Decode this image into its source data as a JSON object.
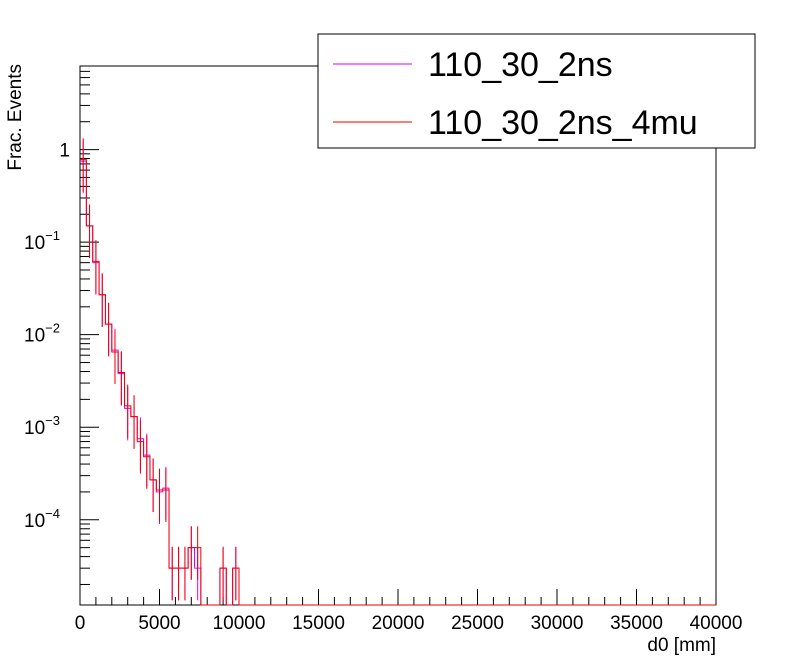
{
  "chart_data": {
    "type": "line",
    "subtype": "step-histogram",
    "title": "",
    "xlabel": "d0 [mm]",
    "ylabel": "Frac. Events",
    "xlim": [
      0,
      40000
    ],
    "ylim": [
      1.2e-05,
      8
    ],
    "yscale": "log",
    "grid": false,
    "legend_position": "top-right",
    "x_ticks": [
      0,
      5000,
      10000,
      15000,
      20000,
      25000,
      30000,
      35000,
      40000
    ],
    "y_ticks": [
      {
        "value": 0.0001,
        "mantissa": "10",
        "exp": "−4"
      },
      {
        "value": 0.001,
        "mantissa": "10",
        "exp": "−3"
      },
      {
        "value": 0.01,
        "mantissa": "10",
        "exp": "−2"
      },
      {
        "value": 0.1,
        "mantissa": "10",
        "exp": "−1"
      },
      {
        "value": 1,
        "mantissa": "1",
        "exp": ""
      }
    ],
    "bin_width": 400,
    "series": [
      {
        "name": "110_30_2ns",
        "color": "#dd00ff",
        "values": [
          0.75,
          0.15,
          0.06,
          0.027,
          0.013,
          0.0068,
          0.0038,
          0.0016,
          0.0013,
          0.00075,
          0.0005,
          0.00027,
          0.0002,
          0.00022,
          3e-05,
          3e-05,
          3e-05,
          5e-05,
          3e-05,
          1.2e-05,
          1.2e-05,
          1.2e-05,
          3e-05,
          1.2e-05,
          3e-05,
          1.2e-05
        ]
      },
      {
        "name": "110_30_2ns_4mu",
        "color": "#ee0000",
        "values": [
          0.78,
          0.15,
          0.062,
          0.027,
          0.013,
          0.0065,
          0.0039,
          0.0017,
          0.0013,
          0.0007,
          0.00048,
          0.00027,
          0.00021,
          0.00021,
          3e-05,
          3e-05,
          3e-05,
          5e-05,
          5e-05,
          1.2e-05,
          1.2e-05,
          1.2e-05,
          3e-05,
          1.2e-05,
          3e-05,
          1.2e-05
        ]
      }
    ]
  }
}
